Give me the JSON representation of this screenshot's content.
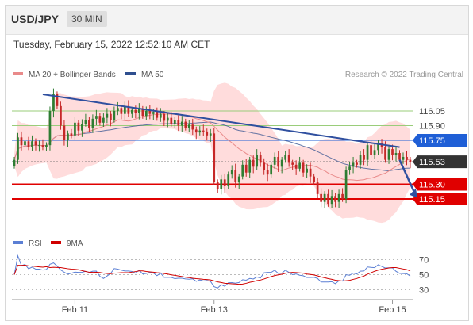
{
  "header": {
    "pair": "USD/JPY",
    "timeframe": "30 MIN"
  },
  "timestamp": "Tuesday, February 15, 2022 12:52:10 AM CET",
  "colors": {
    "bull": "#2e7d32",
    "bear": "#c62828",
    "bollinger": "#ffd6d6",
    "ma20": "#e98a8a",
    "ma50": "#2f4f8f",
    "trend": "#2f4f9f",
    "resistance_green": "#9acd7a",
    "blue_level": "#1f5fd6",
    "support_red": "#e00000",
    "rsi": "#5b7fd4",
    "rsi_ma": "#d00000"
  },
  "chart_data": [
    {
      "type": "candlestick",
      "legend": [
        {
          "name": "MA 20 + Bollinger Bands",
          "color": "#e98a8a"
        },
        {
          "name": "MA 50",
          "color": "#2f4f8f"
        }
      ],
      "credit": "Research © 2022 Trading Central",
      "ylim": [
        114.85,
        116.35
      ],
      "x_ticks": [
        {
          "label": "Feb 11",
          "index": 17
        },
        {
          "label": "Feb 13",
          "index": 56
        },
        {
          "label": "Feb 15",
          "index": 106
        }
      ],
      "levels": [
        {
          "value": 116.05,
          "label": "116.05",
          "style": "green"
        },
        {
          "value": 115.9,
          "label": "115.90",
          "style": "green"
        },
        {
          "value": 115.75,
          "label": "115.75",
          "style": "blue"
        },
        {
          "value": 115.53,
          "label": "115.53",
          "style": "price"
        },
        {
          "value": 115.3,
          "label": "115.30",
          "style": "red"
        },
        {
          "value": 115.15,
          "label": "115.15",
          "style": "red"
        }
      ],
      "trendline": {
        "from": [
          8,
          116.22
        ],
        "to": [
          108,
          115.68
        ]
      },
      "projection": {
        "from": [
          108,
          115.55
        ],
        "to": [
          113,
          115.16
        ]
      },
      "closes": [
        115.55,
        115.78,
        115.7,
        115.74,
        115.68,
        115.74,
        115.7,
        115.7,
        115.68,
        115.7,
        116.05,
        116.22,
        116.1,
        115.9,
        115.75,
        115.82,
        115.8,
        115.93,
        115.85,
        115.92,
        115.96,
        115.88,
        115.97,
        116.0,
        115.93,
        115.98,
        116.02,
        115.96,
        116.05,
        116.08,
        116.02,
        116.1,
        116.02,
        116.06,
        116.03,
        116.07,
        116.0,
        116.05,
        116.02,
        116.04,
        115.98,
        116.02,
        115.95,
        115.98,
        115.92,
        115.96,
        115.9,
        115.94,
        115.88,
        115.91,
        115.86,
        115.83,
        115.85,
        115.84,
        115.8,
        115.82,
        115.32,
        115.25,
        115.35,
        115.28,
        115.4,
        115.45,
        115.32,
        115.38,
        115.5,
        115.42,
        115.55,
        115.48,
        115.6,
        115.52,
        115.45,
        115.4,
        115.5,
        115.58,
        115.48,
        115.55,
        115.6,
        115.52,
        115.5,
        115.46,
        115.52,
        115.42,
        115.46,
        115.38,
        115.32,
        115.2,
        115.12,
        115.2,
        115.1,
        115.18,
        115.12,
        115.2,
        115.15,
        115.45,
        115.48,
        115.52,
        115.5,
        115.6,
        115.55,
        115.7,
        115.6,
        115.65,
        115.72,
        115.68,
        115.55,
        115.66,
        115.6,
        115.62,
        115.55,
        115.58,
        115.55,
        115.53
      ]
    },
    {
      "type": "line",
      "legend": [
        {
          "name": "RSI",
          "color": "#5b7fd4"
        },
        {
          "name": "9MA",
          "color": "#d00000"
        }
      ],
      "ylim": [
        20,
        80
      ],
      "y_ticks": [
        {
          "value": 70,
          "label": "70"
        },
        {
          "value": 50,
          "label": "50"
        },
        {
          "value": 30,
          "label": "30"
        }
      ]
    }
  ]
}
